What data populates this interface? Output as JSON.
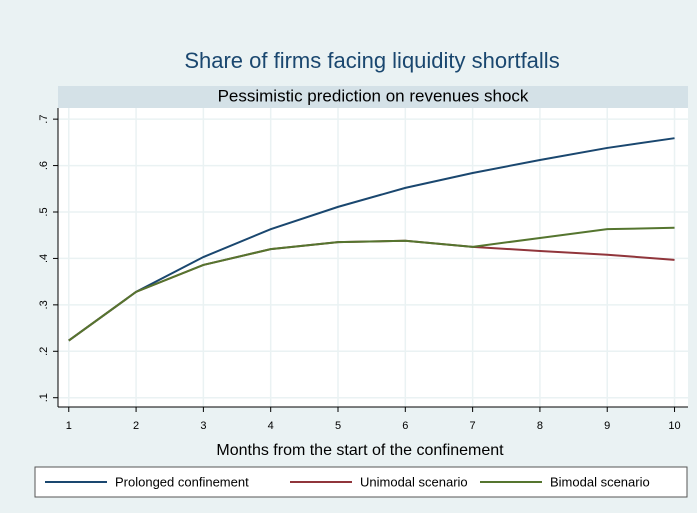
{
  "chart_data": {
    "type": "line",
    "title": "Share of firms facing liquidity shortfalls",
    "subtitle": "Pessimistic prediction on revenues shock",
    "x_label": "Months from the start of the confinement",
    "x": [
      1,
      2,
      3,
      4,
      5,
      6,
      7,
      8,
      9,
      10
    ],
    "series": [
      {
        "name": "Prolonged confinement",
        "color": "#1a476f",
        "values": [
          0.223,
          0.328,
          0.403,
          0.463,
          0.511,
          0.552,
          0.584,
          0.612,
          0.638,
          0.659
        ]
      },
      {
        "name": "Unimodal scenario",
        "color": "#90353b",
        "values": [
          0.223,
          0.328,
          0.386,
          0.42,
          0.435,
          0.438,
          0.425,
          0.416,
          0.408,
          0.397
        ]
      },
      {
        "name": "Bimodal scenario",
        "color": "#55752f",
        "values": [
          0.223,
          0.328,
          0.386,
          0.42,
          0.435,
          0.438,
          0.425,
          0.444,
          0.463,
          0.466
        ]
      }
    ],
    "xlim": [
      0.84,
      10.2
    ],
    "xticks": [
      1,
      2,
      3,
      4,
      5,
      6,
      7,
      8,
      9,
      10
    ],
    "ylim": [
      0.08,
      0.724
    ],
    "yticks": [
      {
        "value": 0.1,
        "label": ".1"
      },
      {
        "value": 0.2,
        "label": ".2"
      },
      {
        "value": 0.3,
        "label": ".3"
      },
      {
        "value": 0.4,
        "label": ".4"
      },
      {
        "value": 0.5,
        "label": ".5"
      },
      {
        "value": 0.6,
        "label": ".6"
      },
      {
        "value": 0.7,
        "label": ".7"
      }
    ],
    "grid": true,
    "legend": "bottom"
  }
}
